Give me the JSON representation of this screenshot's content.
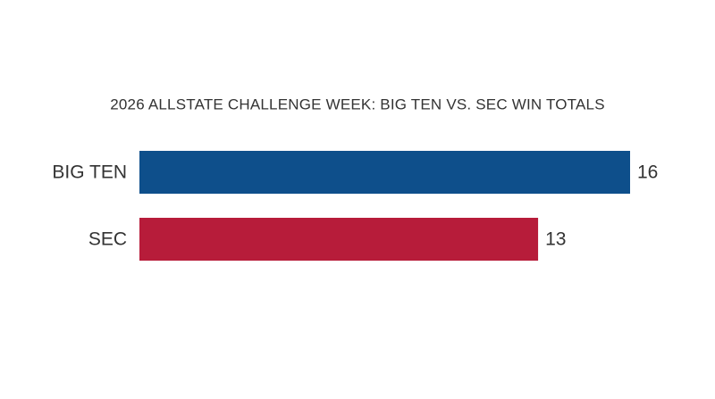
{
  "chart_data": {
    "type": "bar",
    "orientation": "horizontal",
    "title": "2026 ALLSTATE CHALLENGE WEEK: BIG TEN VS. SEC WIN TOTALS",
    "categories": [
      "BIG TEN",
      "SEC"
    ],
    "values": [
      16,
      13
    ],
    "colors": [
      "#0e4f8b",
      "#b71c3a"
    ]
  }
}
